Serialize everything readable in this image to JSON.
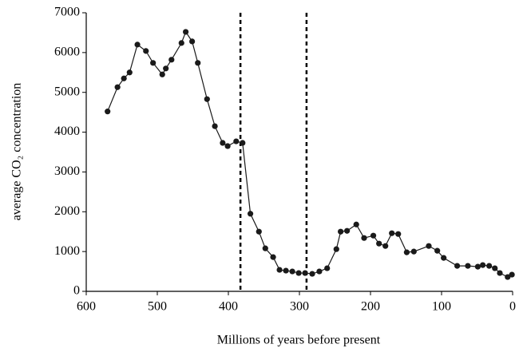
{
  "chart_data": {
    "type": "line",
    "xlabel": "Millions of years before present",
    "ylabel": "average CO₂  concentration",
    "x": [
      570,
      556,
      547,
      539,
      528,
      516,
      506,
      493,
      488,
      480,
      466,
      460,
      451,
      443,
      430,
      419,
      408,
      401,
      389,
      380,
      369,
      357,
      348,
      337,
      328,
      319,
      310,
      301,
      292,
      282,
      272,
      261,
      248,
      242,
      233,
      220,
      209,
      196,
      188,
      179,
      170,
      161,
      149,
      139,
      118,
      106,
      97,
      78,
      63,
      49,
      42,
      33,
      25,
      18,
      7,
      1
    ],
    "series": [
      {
        "color": "#1a1a1a",
        "values": [
          4520,
          5130,
          5350,
          5500,
          6200,
          6040,
          5740,
          5450,
          5600,
          5820,
          6240,
          6520,
          6280,
          5740,
          4830,
          4150,
          3730,
          3650,
          3770,
          3730,
          1950,
          1500,
          1080,
          860,
          540,
          520,
          500,
          460,
          460,
          440,
          500,
          580,
          1060,
          1500,
          1520,
          1680,
          1340,
          1400,
          1200,
          1140,
          1460,
          1440,
          980,
          1000,
          1140,
          1020,
          840,
          640,
          640,
          620,
          660,
          640,
          580,
          460,
          360,
          420
        ]
      }
    ],
    "vlines": [
      383,
      290
    ],
    "xlim": [
      600,
      0
    ],
    "xticks": [
      600,
      500,
      400,
      300,
      200,
      100,
      0
    ],
    "ylim": [
      0,
      7000
    ],
    "yticks": [
      0,
      1000,
      2000,
      3000,
      4000,
      5000,
      6000,
      7000
    ],
    "grid": false
  }
}
